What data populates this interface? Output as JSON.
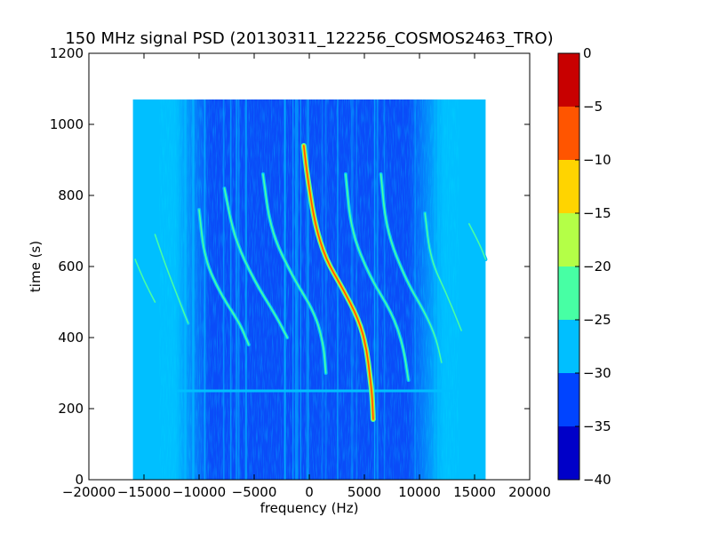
{
  "chart_data": {
    "type": "heatmap",
    "title": "150 MHz signal PSD (20130311_122256_COSMOS2463_TRO)",
    "xlabel": "frequency (Hz)",
    "ylabel": "time (s)",
    "xlim": [
      -20000,
      20000
    ],
    "ylim": [
      0,
      1200
    ],
    "xticks": [
      -20000,
      -15000,
      -10000,
      -5000,
      0,
      5000,
      10000,
      15000,
      20000
    ],
    "xtick_labels": [
      "−20000",
      "−15000",
      "−10000",
      "−5000",
      "0",
      "5000",
      "10000",
      "15000",
      "20000"
    ],
    "yticks": [
      0,
      200,
      400,
      600,
      800,
      1000,
      1200
    ],
    "ytick_labels": [
      "0",
      "200",
      "400",
      "600",
      "800",
      "1000",
      "1200"
    ],
    "data_extent": {
      "x": [
        -16000,
        16000
      ],
      "y": [
        0,
        1070
      ]
    },
    "colorbar": {
      "levels": [
        -40,
        -35,
        -30,
        -25,
        -20,
        -15,
        -10,
        -5,
        0
      ],
      "tick_labels": [
        "−40",
        "−35",
        "−30",
        "−25",
        "−20",
        "−15",
        "−10",
        "−5",
        "0"
      ],
      "colors": [
        "#0000c8",
        "#0044ff",
        "#00bfff",
        "#47ffa4",
        "#b4ff47",
        "#ffd400",
        "#ff5500",
        "#c80000"
      ]
    },
    "background_level_colors": {
      "edge": "#00bfff",
      "center": "#0a4cf8"
    },
    "grid": false,
    "traces": [
      {
        "role": "main",
        "x": [
          -500,
          -200,
          500,
          1500,
          3000,
          4500,
          5200,
          5500,
          5700,
          5800
        ],
        "y": [
          940,
          860,
          720,
          620,
          540,
          450,
          370,
          290,
          240,
          170
        ]
      },
      {
        "role": "harmonic",
        "x": [
          -7700,
          -6800,
          -5000,
          -3000,
          -2000
        ],
        "y": [
          820,
          680,
          560,
          460,
          400
        ]
      },
      {
        "role": "harmonic",
        "x": [
          -4200,
          -3500,
          -1500,
          500,
          1300,
          1500
        ],
        "y": [
          860,
          700,
          570,
          470,
          380,
          300
        ]
      },
      {
        "role": "harmonic",
        "x": [
          -10000,
          -9500,
          -8000,
          -6300,
          -5500
        ],
        "y": [
          760,
          620,
          520,
          440,
          380
        ]
      },
      {
        "role": "harmonic",
        "x": [
          3300,
          3800,
          5500,
          7500,
          8500,
          9000
        ],
        "y": [
          860,
          700,
          570,
          470,
          380,
          280
        ]
      },
      {
        "role": "harmonic",
        "x": [
          6500,
          7000,
          8800,
          10500,
          11500,
          12000
        ],
        "y": [
          860,
          700,
          560,
          470,
          400,
          330
        ]
      },
      {
        "role": "harmonic",
        "x": [
          10500,
          11000,
          12500,
          13800
        ],
        "y": [
          750,
          620,
          520,
          420
        ]
      },
      {
        "role": "harmonic",
        "x": [
          -14000,
          -13000,
          -12000,
          -11000
        ],
        "y": [
          690,
          600,
          520,
          440
        ]
      },
      {
        "role": "harmonic",
        "x": [
          -15800,
          -15000,
          -14000
        ],
        "y": [
          620,
          560,
          500
        ]
      },
      {
        "role": "harmonic",
        "x": [
          14500,
          15500,
          16000
        ],
        "y": [
          720,
          660,
          620
        ]
      }
    ],
    "horizontal_line": {
      "y": 250
    }
  }
}
